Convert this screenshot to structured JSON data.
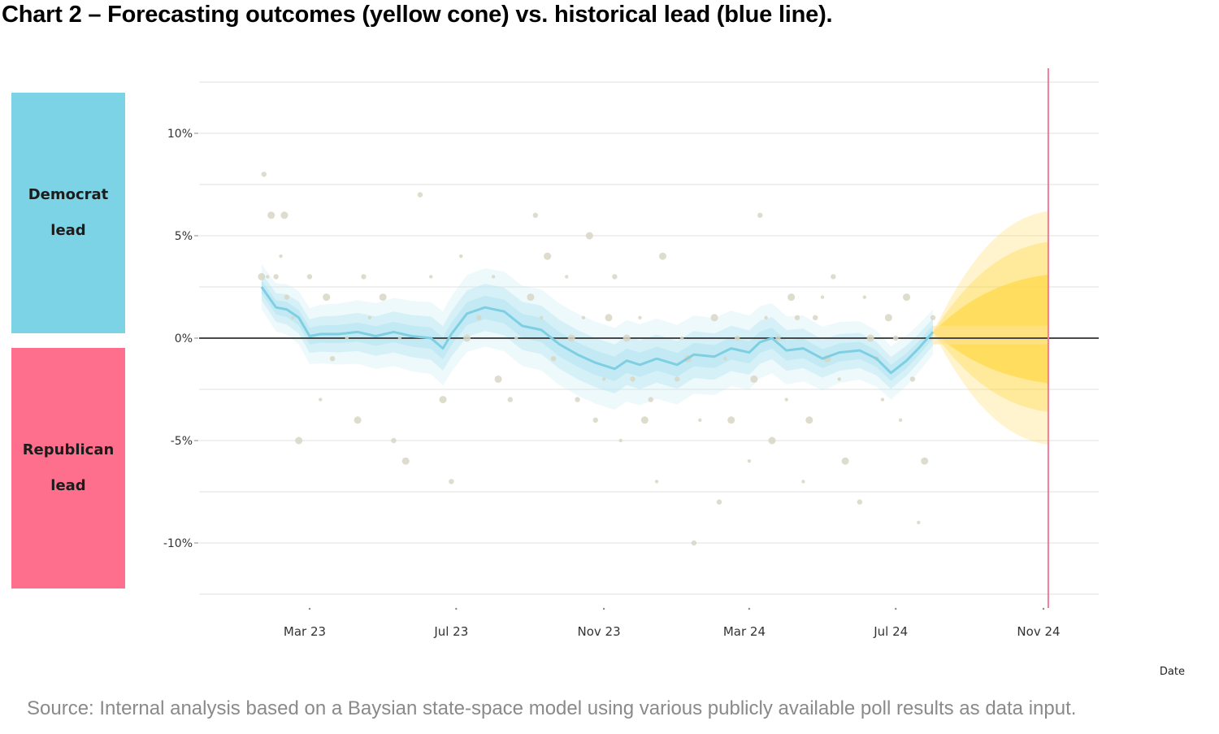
{
  "title": "Chart 2 – Forecasting outcomes (yellow cone) vs. historical lead (blue line).",
  "legend_boxes": {
    "democrat": {
      "line1": "Democrat",
      "line2": "lead",
      "color": "#7dd3e6"
    },
    "republican": {
      "line1": "Republican",
      "line2": "lead",
      "color": "#fd6f8c"
    }
  },
  "source": "Source: Internal analysis based on a Baysian state-space model using various publicly available poll results as data input.",
  "colors": {
    "trend": "#7fcfe3",
    "band": "#b8e6f1",
    "cone": "#ffd84a",
    "points": "#d8d6c4",
    "zero_line": "#4a4a4a",
    "election_line": "#f47a9a"
  },
  "chart_data": {
    "type": "line",
    "xlabel": "Date",
    "ylabel": "",
    "ylim": [
      -12.5,
      12.5
    ],
    "yticks": [
      10,
      5,
      0,
      -5,
      -10
    ],
    "ytick_labels": [
      "10%",
      "5%",
      "0%",
      "-5%",
      "-10%"
    ],
    "xticks": [
      "2023-03-01",
      "2023-07-01",
      "2023-11-01",
      "2024-03-01",
      "2024-07-01",
      "2024-11-01"
    ],
    "xtick_labels": [
      "Mar 23",
      "Jul 23",
      "Nov 23",
      "Mar 24",
      "Jul 24",
      "Nov 24"
    ],
    "election_date": "2024-11-05",
    "series": [
      {
        "kind": "trend",
        "x": [
          "2023-01-20",
          "2023-02-01",
          "2023-02-10",
          "2023-02-20",
          "2023-03-01",
          "2023-03-10",
          "2023-03-25",
          "2023-04-10",
          "2023-04-25",
          "2023-05-10",
          "2023-05-25",
          "2023-06-10",
          "2023-06-20",
          "2023-06-27",
          "2023-07-10",
          "2023-07-25",
          "2023-08-10",
          "2023-08-25",
          "2023-09-10",
          "2023-09-25",
          "2023-10-10",
          "2023-10-25",
          "2023-11-10",
          "2023-11-20",
          "2023-12-01",
          "2023-12-15",
          "2024-01-01",
          "2024-01-15",
          "2024-02-01",
          "2024-02-15",
          "2024-03-01",
          "2024-03-10",
          "2024-03-20",
          "2024-04-01",
          "2024-04-15",
          "2024-05-01",
          "2024-05-15",
          "2024-06-01",
          "2024-06-15",
          "2024-06-27",
          "2024-07-10",
          "2024-07-20",
          "2024-08-01"
        ],
        "y": [
          2.5,
          1.5,
          1.4,
          1.0,
          0.1,
          0.2,
          0.2,
          0.3,
          0.1,
          0.3,
          0.1,
          0.0,
          -0.5,
          0.2,
          1.2,
          1.5,
          1.3,
          0.6,
          0.4,
          -0.3,
          -0.8,
          -1.2,
          -1.5,
          -1.1,
          -1.3,
          -1.0,
          -1.3,
          -0.8,
          -0.9,
          -0.5,
          -0.7,
          -0.2,
          0.0,
          -0.6,
          -0.5,
          -1.0,
          -0.7,
          -0.6,
          -1.0,
          -1.7,
          -1.1,
          -0.5,
          0.3
        ]
      },
      {
        "kind": "forecast_cone",
        "x": [
          "2024-08-01",
          "2024-11-05"
        ],
        "center": [
          0.3,
          0.3
        ],
        "band_50": [
          [
            0.3,
            0.3
          ],
          [
            -2.2,
            3.1
          ]
        ],
        "band_80": [
          [
            0.3,
            0.3
          ],
          [
            -3.6,
            4.7
          ]
        ],
        "band_95": [
          [
            0.3,
            0.3
          ],
          [
            -5.2,
            6.2
          ]
        ]
      }
    ],
    "polls": {
      "x": [
        "2023-01-20",
        "2023-01-22",
        "2023-01-25",
        "2023-01-28",
        "2023-02-01",
        "2023-02-05",
        "2023-02-08",
        "2023-02-10",
        "2023-02-15",
        "2023-02-20",
        "2023-03-01",
        "2023-03-10",
        "2023-03-15",
        "2023-03-20",
        "2023-04-01",
        "2023-04-10",
        "2023-04-15",
        "2023-04-20",
        "2023-05-01",
        "2023-05-10",
        "2023-05-15",
        "2023-05-20",
        "2023-06-01",
        "2023-06-10",
        "2023-06-20",
        "2023-06-27",
        "2023-07-05",
        "2023-07-10",
        "2023-07-20",
        "2023-08-01",
        "2023-08-05",
        "2023-08-15",
        "2023-08-20",
        "2023-09-01",
        "2023-09-05",
        "2023-09-10",
        "2023-09-15",
        "2023-09-20",
        "2023-10-01",
        "2023-10-05",
        "2023-10-10",
        "2023-10-15",
        "2023-10-20",
        "2023-10-25",
        "2023-11-01",
        "2023-11-05",
        "2023-11-10",
        "2023-11-15",
        "2023-11-20",
        "2023-11-25",
        "2023-12-01",
        "2023-12-05",
        "2023-12-10",
        "2023-12-15",
        "2023-12-20",
        "2024-01-01",
        "2024-01-05",
        "2024-01-10",
        "2024-01-15",
        "2024-01-20",
        "2024-02-01",
        "2024-02-05",
        "2024-02-10",
        "2024-02-15",
        "2024-02-20",
        "2024-03-01",
        "2024-03-05",
        "2024-03-10",
        "2024-03-15",
        "2024-03-20",
        "2024-03-25",
        "2024-04-01",
        "2024-04-05",
        "2024-04-10",
        "2024-04-15",
        "2024-04-20",
        "2024-04-25",
        "2024-05-01",
        "2024-05-05",
        "2024-05-10",
        "2024-05-15",
        "2024-05-20",
        "2024-06-01",
        "2024-06-05",
        "2024-06-10",
        "2024-06-15",
        "2024-06-20",
        "2024-06-25",
        "2024-07-01",
        "2024-07-05",
        "2024-07-10",
        "2024-07-15",
        "2024-07-20",
        "2024-07-25",
        "2024-08-01"
      ],
      "y": [
        3.0,
        8.0,
        3.0,
        6.0,
        3.0,
        4.0,
        6.0,
        2.0,
        1.0,
        -5.0,
        3.0,
        -3.0,
        2.0,
        -1.0,
        0.0,
        -4.0,
        3.0,
        1.0,
        2.0,
        -5.0,
        0.0,
        -6.0,
        7.0,
        3.0,
        -3.0,
        -7.0,
        4.0,
        0.0,
        1.0,
        3.0,
        -2.0,
        -3.0,
        0.0,
        2.0,
        6.0,
        1.0,
        4.0,
        -1.0,
        3.0,
        0.0,
        -3.0,
        1.0,
        5.0,
        -4.0,
        -2.0,
        1.0,
        3.0,
        -5.0,
        0.0,
        -2.0,
        1.0,
        -4.0,
        -3.0,
        -7.0,
        4.0,
        -2.0,
        0.0,
        -1.0,
        -10.0,
        -4.0,
        1.0,
        -8.0,
        -1.0,
        -4.0,
        0.0,
        -6.0,
        -2.0,
        6.0,
        1.0,
        -5.0,
        0.0,
        -3.0,
        2.0,
        1.0,
        -7.0,
        -4.0,
        1.0,
        2.0,
        -1.0,
        3.0,
        -2.0,
        -6.0,
        -8.0,
        2.0,
        0.0,
        -1.0,
        -3.0,
        1.0,
        0.0,
        -4.0,
        2.0,
        -2.0,
        -9.0,
        -6.0,
        1.0
      ]
    }
  }
}
